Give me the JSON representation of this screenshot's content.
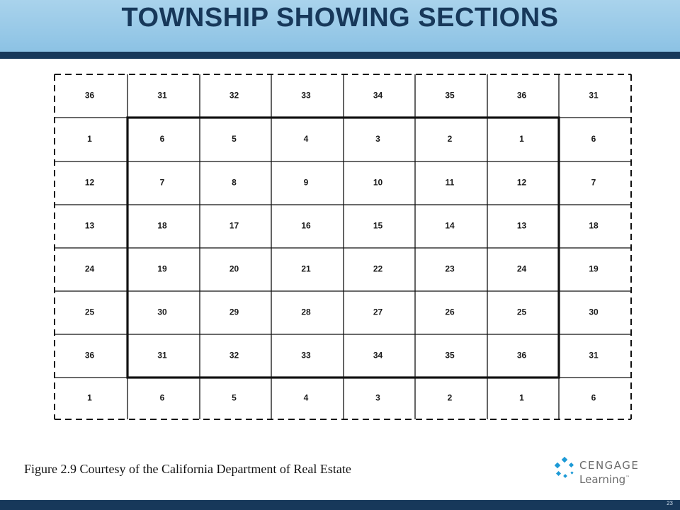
{
  "slide": {
    "title": "TOWNSHIP SHOWING SECTIONS",
    "caption": "Figure 2.9 Courtesy of the California Department of Real Estate",
    "page_number": "23"
  },
  "logo": {
    "line1": "CENGAGE",
    "line2": "Learning",
    "mark": "™"
  },
  "colors": {
    "title_bar": "#8cc2e4",
    "navy": "#17385a",
    "logo_blue": "#1d9ad6"
  },
  "grid": {
    "rows": [
      [
        "36",
        "31",
        "32",
        "33",
        "34",
        "35",
        "36",
        "31"
      ],
      [
        "1",
        "6",
        "5",
        "4",
        "3",
        "2",
        "1",
        "6"
      ],
      [
        "12",
        "7",
        "8",
        "9",
        "10",
        "11",
        "12",
        "7"
      ],
      [
        "13",
        "18",
        "17",
        "16",
        "15",
        "14",
        "13",
        "18"
      ],
      [
        "24",
        "19",
        "20",
        "21",
        "22",
        "23",
        "24",
        "19"
      ],
      [
        "25",
        "30",
        "29",
        "28",
        "27",
        "26",
        "25",
        "30"
      ],
      [
        "36",
        "31",
        "32",
        "33",
        "34",
        "35",
        "36",
        "31"
      ],
      [
        "1",
        "6",
        "5",
        "4",
        "3",
        "2",
        "1",
        "6"
      ]
    ]
  }
}
